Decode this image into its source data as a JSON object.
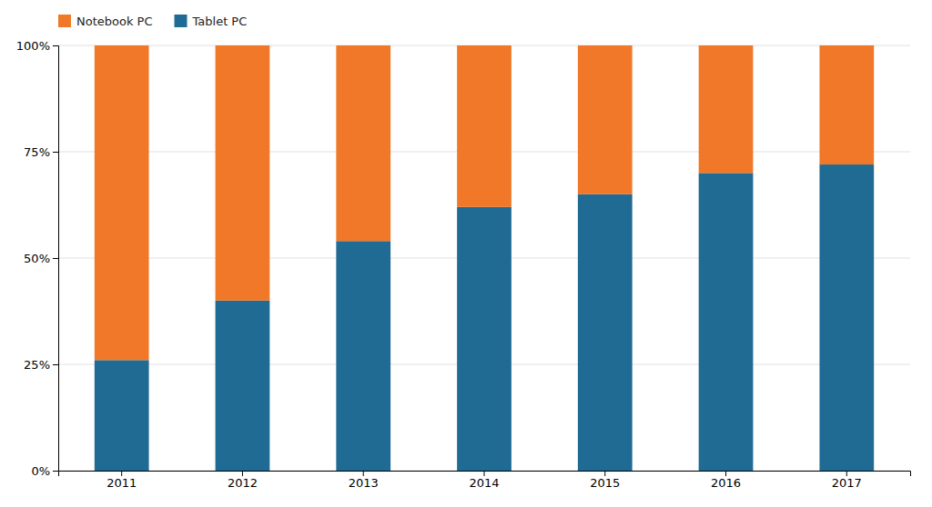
{
  "chart_data": {
    "type": "bar",
    "stacked": true,
    "categories": [
      "2011",
      "2012",
      "2013",
      "2014",
      "2015",
      "2016",
      "2017"
    ],
    "series": [
      {
        "name": "Tablet PC",
        "color": "#1f6b94",
        "values": [
          26,
          40,
          54,
          62,
          65,
          70,
          72
        ]
      },
      {
        "name": "Notebook PC",
        "color": "#f07828",
        "values": [
          74,
          60,
          46,
          38,
          35,
          30,
          28
        ]
      }
    ],
    "ylim": [
      0,
      100
    ],
    "yticks": [
      {
        "value": 0,
        "label": "0%"
      },
      {
        "value": 25,
        "label": "25%"
      },
      {
        "value": 50,
        "label": "50%"
      },
      {
        "value": 75,
        "label": "75%"
      },
      {
        "value": 100,
        "label": "100%"
      }
    ],
    "grid": true,
    "legend": "upper left"
  }
}
